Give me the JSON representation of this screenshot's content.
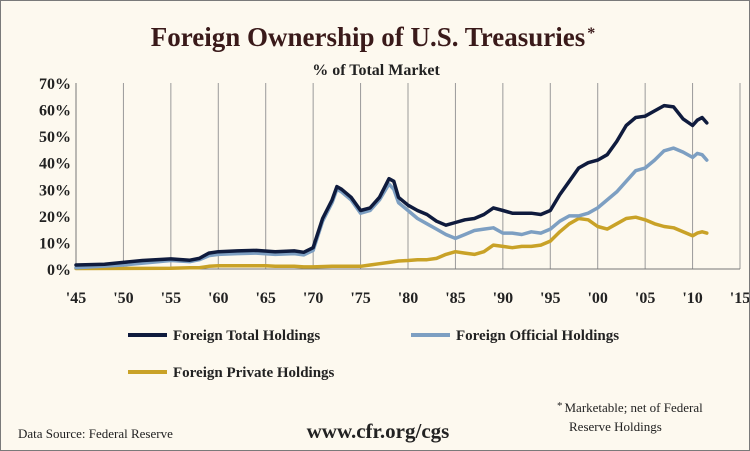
{
  "chart_data": {
    "type": "line",
    "title": "Foreign Ownership of U.S. Treasuries",
    "title_marker": "*",
    "subtitle": "% of Total Market",
    "x_ticks": [
      "'45",
      "'50",
      "'55",
      "'60",
      "'65",
      "'70",
      "'75",
      "'80",
      "'85",
      "'90",
      "'95",
      "'00",
      "'05",
      "'10",
      "'15"
    ],
    "x_tick_values": [
      1945,
      1950,
      1955,
      1960,
      1965,
      1970,
      1975,
      1980,
      1985,
      1990,
      1995,
      2000,
      2005,
      2010,
      2015
    ],
    "y_ticks": [
      "0%",
      "10%",
      "20%",
      "30%",
      "40%",
      "50%",
      "60%",
      "70%"
    ],
    "y_tick_values": [
      0,
      10,
      20,
      30,
      40,
      50,
      60,
      70
    ],
    "xlim": [
      1945,
      2015
    ],
    "ylim": [
      0,
      70
    ],
    "grid": "vertical",
    "legend_placement": "bottom",
    "series": [
      {
        "name": "Foreign Total Holdings",
        "color": "#0f1b3d",
        "points": [
          [
            1945,
            1.5
          ],
          [
            1948,
            1.8
          ],
          [
            1950,
            2.5
          ],
          [
            1952,
            3.2
          ],
          [
            1955,
            3.8
          ],
          [
            1957,
            3.3
          ],
          [
            1958,
            4.0
          ],
          [
            1959,
            6.0
          ],
          [
            1960,
            6.5
          ],
          [
            1962,
            6.8
          ],
          [
            1964,
            7.0
          ],
          [
            1966,
            6.5
          ],
          [
            1968,
            6.8
          ],
          [
            1969,
            6.3
          ],
          [
            1970,
            8.0
          ],
          [
            1971,
            19.0
          ],
          [
            1972,
            26.0
          ],
          [
            1972.5,
            31.0
          ],
          [
            1973,
            30.0
          ],
          [
            1974,
            27.0
          ],
          [
            1975,
            22.0
          ],
          [
            1976,
            23.0
          ],
          [
            1977,
            27.0
          ],
          [
            1978,
            34.0
          ],
          [
            1978.5,
            33.0
          ],
          [
            1979,
            27.0
          ],
          [
            1980,
            24.0
          ],
          [
            1981,
            22.0
          ],
          [
            1982,
            20.5
          ],
          [
            1983,
            18.0
          ],
          [
            1984,
            16.5
          ],
          [
            1985,
            17.5
          ],
          [
            1986,
            18.5
          ],
          [
            1987,
            19.0
          ],
          [
            1988,
            20.5
          ],
          [
            1989,
            23.0
          ],
          [
            1990,
            22.0
          ],
          [
            1991,
            21.0
          ],
          [
            1992,
            21.0
          ],
          [
            1993,
            21.0
          ],
          [
            1994,
            20.5
          ],
          [
            1995,
            22.0
          ],
          [
            1996,
            28.0
          ],
          [
            1997,
            33.0
          ],
          [
            1998,
            38.0
          ],
          [
            1999,
            40.0
          ],
          [
            2000,
            41.0
          ],
          [
            2001,
            43.0
          ],
          [
            2002,
            48.0
          ],
          [
            2003,
            54.0
          ],
          [
            2004,
            57.0
          ],
          [
            2005,
            57.5
          ],
          [
            2006,
            59.5
          ],
          [
            2007,
            61.5
          ],
          [
            2008,
            61.0
          ],
          [
            2009,
            56.5
          ],
          [
            2010,
            54.0
          ],
          [
            2010.5,
            56.0
          ],
          [
            2011,
            57.0
          ],
          [
            2011.5,
            55.0
          ]
        ]
      },
      {
        "name": "Foreign Official Holdings",
        "color": "#7d9fc2",
        "points": [
          [
            1945,
            0.5
          ],
          [
            1950,
            1.5
          ],
          [
            1955,
            3.2
          ],
          [
            1957,
            2.8
          ],
          [
            1958,
            3.5
          ],
          [
            1959,
            5.0
          ],
          [
            1960,
            5.5
          ],
          [
            1962,
            5.8
          ],
          [
            1964,
            6.0
          ],
          [
            1966,
            5.5
          ],
          [
            1968,
            5.8
          ],
          [
            1969,
            5.3
          ],
          [
            1970,
            7.0
          ],
          [
            1971,
            18.0
          ],
          [
            1972,
            25.0
          ],
          [
            1972.5,
            30.0
          ],
          [
            1973,
            29.0
          ],
          [
            1974,
            26.0
          ],
          [
            1975,
            21.0
          ],
          [
            1976,
            22.0
          ],
          [
            1977,
            26.0
          ],
          [
            1978,
            32.0
          ],
          [
            1978.5,
            30.0
          ],
          [
            1979,
            25.0
          ],
          [
            1980,
            22.0
          ],
          [
            1981,
            19.0
          ],
          [
            1982,
            17.0
          ],
          [
            1983,
            15.0
          ],
          [
            1984,
            13.0
          ],
          [
            1985,
            11.5
          ],
          [
            1986,
            13.0
          ],
          [
            1987,
            14.5
          ],
          [
            1988,
            15.0
          ],
          [
            1989,
            15.5
          ],
          [
            1990,
            13.5
          ],
          [
            1991,
            13.5
          ],
          [
            1992,
            13.0
          ],
          [
            1993,
            14.0
          ],
          [
            1994,
            13.5
          ],
          [
            1995,
            15.0
          ],
          [
            1996,
            18.0
          ],
          [
            1997,
            20.0
          ],
          [
            1998,
            20.0
          ],
          [
            1999,
            21.0
          ],
          [
            2000,
            23.0
          ],
          [
            2001,
            26.0
          ],
          [
            2002,
            29.0
          ],
          [
            2003,
            33.0
          ],
          [
            2004,
            37.0
          ],
          [
            2005,
            38.0
          ],
          [
            2006,
            41.0
          ],
          [
            2007,
            44.5
          ],
          [
            2008,
            45.5
          ],
          [
            2009,
            44.0
          ],
          [
            2010,
            42.0
          ],
          [
            2010.5,
            43.5
          ],
          [
            2011,
            43.0
          ],
          [
            2011.5,
            41.0
          ]
        ]
      },
      {
        "name": "Foreign Private Holdings",
        "color": "#c9a227",
        "points": [
          [
            1945,
            0.2
          ],
          [
            1955,
            0.3
          ],
          [
            1957,
            0.5
          ],
          [
            1958,
            0.5
          ],
          [
            1959,
            1.0
          ],
          [
            1960,
            1.2
          ],
          [
            1965,
            1.2
          ],
          [
            1966,
            1.0
          ],
          [
            1968,
            1.0
          ],
          [
            1969,
            0.8
          ],
          [
            1970,
            0.8
          ],
          [
            1972,
            1.0
          ],
          [
            1975,
            1.0
          ],
          [
            1976,
            1.5
          ],
          [
            1977,
            2.0
          ],
          [
            1978,
            2.5
          ],
          [
            1979,
            3.0
          ],
          [
            1980,
            3.2
          ],
          [
            1981,
            3.5
          ],
          [
            1982,
            3.5
          ],
          [
            1983,
            4.0
          ],
          [
            1984,
            5.5
          ],
          [
            1985,
            6.5
          ],
          [
            1986,
            6.0
          ],
          [
            1987,
            5.5
          ],
          [
            1988,
            6.5
          ],
          [
            1989,
            9.0
          ],
          [
            1990,
            8.5
          ],
          [
            1991,
            8.0
          ],
          [
            1992,
            8.5
          ],
          [
            1993,
            8.5
          ],
          [
            1994,
            9.0
          ],
          [
            1995,
            10.5
          ],
          [
            1996,
            14.0
          ],
          [
            1997,
            17.0
          ],
          [
            1998,
            19.0
          ],
          [
            1999,
            18.5
          ],
          [
            2000,
            16.0
          ],
          [
            2001,
            15.0
          ],
          [
            2002,
            17.0
          ],
          [
            2003,
            19.0
          ],
          [
            2004,
            19.5
          ],
          [
            2005,
            18.5
          ],
          [
            2006,
            17.0
          ],
          [
            2007,
            16.0
          ],
          [
            2008,
            15.5
          ],
          [
            2009,
            14.0
          ],
          [
            2010,
            12.5
          ],
          [
            2010.5,
            13.5
          ],
          [
            2011,
            14.0
          ],
          [
            2011.5,
            13.5
          ]
        ]
      }
    ]
  },
  "footer": {
    "source": "Data Source: Federal Reserve",
    "url": "www.cfr.org/cgs",
    "note_marker": "*",
    "note_line1": "Marketable; net of Federal",
    "note_line2": "Reserve Holdings"
  }
}
